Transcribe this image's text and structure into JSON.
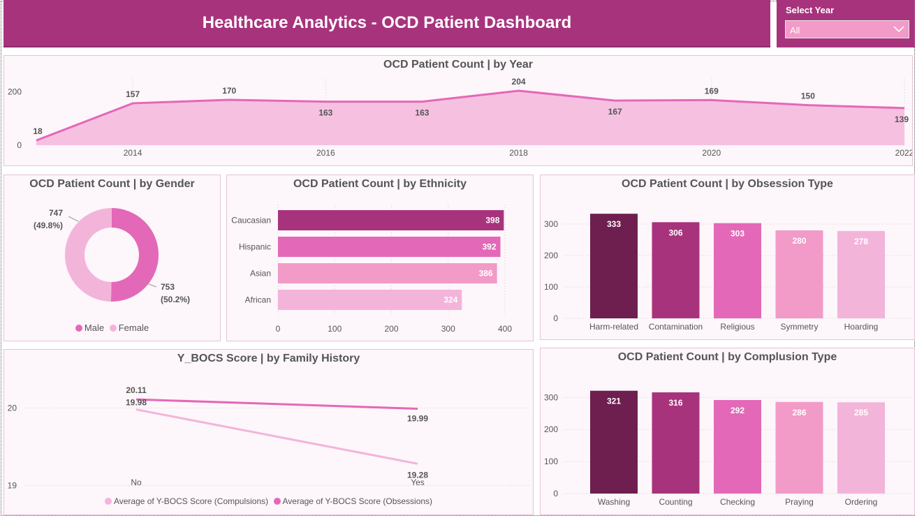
{
  "header": {
    "title": "Healthcare Analytics - OCD Patient Dashboard"
  },
  "slicer": {
    "label": "Select Year",
    "value": "All"
  },
  "year_chart": {
    "title": "OCD Patient Count | by Year",
    "chart_data": {
      "type": "area",
      "x": [
        2013,
        2014,
        2015,
        2016,
        2017,
        2018,
        2019,
        2020,
        2021,
        2022
      ],
      "values": [
        18,
        157,
        170,
        163,
        163,
        204,
        167,
        169,
        150,
        139
      ],
      "x_ticks": [
        "2014",
        "2016",
        "2018",
        "2020",
        "2022"
      ],
      "y_ticks": [
        "0",
        "200"
      ],
      "ylim": [
        0,
        230
      ]
    }
  },
  "gender_chart": {
    "title": "OCD Patient Count | by Gender",
    "chart_data": {
      "type": "pie",
      "slices": [
        {
          "name": "Male",
          "value": 753,
          "label": "753",
          "pct": "(50.2%)"
        },
        {
          "name": "Female",
          "value": 747,
          "label": "747",
          "pct": "(49.8%)"
        }
      ]
    },
    "legend": [
      "Male",
      "Female"
    ]
  },
  "ethnicity_chart": {
    "title": "OCD Patient Count | by Ethnicity",
    "chart_data": {
      "type": "bar",
      "orientation": "horizontal",
      "categories": [
        "Caucasian",
        "Hispanic",
        "Asian",
        "African"
      ],
      "values": [
        398,
        392,
        386,
        324
      ],
      "x_ticks": [
        "0",
        "100",
        "200",
        "300",
        "400"
      ],
      "xlim": [
        0,
        400
      ]
    }
  },
  "obsession_chart": {
    "title": "OCD Patient Count | by Obsession Type",
    "chart_data": {
      "type": "bar",
      "categories": [
        "Harm-related",
        "Contamination",
        "Religious",
        "Symmetry",
        "Hoarding"
      ],
      "values": [
        333,
        306,
        303,
        280,
        278
      ],
      "y_ticks": [
        "0",
        "100",
        "200",
        "300"
      ],
      "ylim": [
        0,
        340
      ]
    }
  },
  "family_chart": {
    "title": "Y_BOCS Score | by Family History",
    "chart_data": {
      "type": "line",
      "categories": [
        "No",
        "Yes"
      ],
      "series": [
        {
          "name": "Average of Y-BOCS Score (Compulsions)",
          "values": [
            19.98,
            19.28
          ]
        },
        {
          "name": "Average of Y-BOCS Score (Obsessions)",
          "values": [
            20.11,
            19.99
          ]
        }
      ],
      "y_ticks": [
        "19",
        "20"
      ],
      "ylim": [
        18.95,
        20.3
      ]
    },
    "legend": [
      "Average of Y-BOCS Score (Compulsions)",
      "Average of Y-BOCS Score (Obsessions)"
    ]
  },
  "compulsion_chart": {
    "title": "OCD Patient Count | by Complusion Type",
    "chart_data": {
      "type": "bar",
      "categories": [
        "Washing",
        "Counting",
        "Checking",
        "Praying",
        "Ordering"
      ],
      "values": [
        321,
        316,
        292,
        286,
        285
      ],
      "y_ticks": [
        "0",
        "100",
        "200",
        "300"
      ],
      "ylim": [
        0,
        340
      ]
    }
  },
  "colors": {
    "header": "#a8337d",
    "dark": "#6e1f4f",
    "medium": "#a8337d",
    "pink": "#e468b8",
    "light": "#f29ac8",
    "pale": "#f3b4da",
    "area_fill": "#f6c1e1",
    "area_line": "#e468b8"
  }
}
